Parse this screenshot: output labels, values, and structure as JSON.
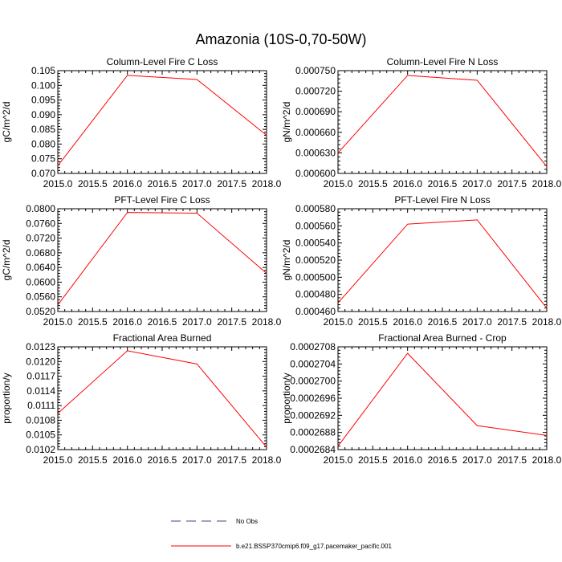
{
  "figure": {
    "title": "Amazonia (10S-0,70-50W)"
  },
  "legend": {
    "items": [
      {
        "label": "No Obs",
        "color": "#4b3c8c",
        "dash": "dashed"
      },
      {
        "label": "b.e21.BSSP370cmip6.f09_g17.pacemaker_pacific.001",
        "color": "#ff0000",
        "dash": "solid"
      }
    ]
  },
  "chart_data": [
    {
      "type": "line",
      "title": "Column-Level Fire C Loss",
      "ylabel": "gC/m^2/d",
      "xlim": [
        2015.0,
        2018.0
      ],
      "ylim": [
        0.07,
        0.105
      ],
      "xticks": [
        "2015.0",
        "2015.5",
        "2016.0",
        "2016.5",
        "2017.0",
        "2017.5",
        "2018.0"
      ],
      "yticks": [
        "0.070",
        "0.075",
        "0.080",
        "0.085",
        "0.090",
        "0.095",
        "0.100",
        "0.105"
      ],
      "x": [
        2015.0,
        2016.0,
        2017.0,
        2018.0
      ],
      "series": [
        {
          "name": "b.e21.BSSP370cmip6.f09_g17.pacemaker_pacific.001",
          "color": "#ff0000",
          "values": [
            0.0726,
            0.1034,
            0.102,
            0.083
          ]
        }
      ]
    },
    {
      "type": "line",
      "title": "Column-Level Fire N Loss",
      "ylabel": "gN/m^2/d",
      "xlim": [
        2015.0,
        2018.0
      ],
      "ylim": [
        0.0006,
        0.00075
      ],
      "xticks": [
        "2015.0",
        "2015.5",
        "2016.0",
        "2016.5",
        "2017.0",
        "2017.5",
        "2018.0"
      ],
      "yticks": [
        "0.000600",
        "0.000630",
        "0.000660",
        "0.000690",
        "0.000720",
        "0.000750"
      ],
      "x": [
        2015.0,
        2016.0,
        2017.0,
        2018.0
      ],
      "series": [
        {
          "name": "b.e21.BSSP370cmip6.f09_g17.pacemaker_pacific.001",
          "color": "#ff0000",
          "values": [
            0.00063,
            0.000743,
            0.000736,
            0.00061
          ]
        }
      ]
    },
    {
      "type": "line",
      "title": "PFT-Level Fire C Loss",
      "ylabel": "gC/m^2/d",
      "xlim": [
        2015.0,
        2018.0
      ],
      "ylim": [
        0.052,
        0.08
      ],
      "xticks": [
        "2015.0",
        "2015.5",
        "2016.0",
        "2016.5",
        "2017.0",
        "2017.5",
        "2018.0"
      ],
      "yticks": [
        "0.0520",
        "0.0560",
        "0.0600",
        "0.0640",
        "0.0680",
        "0.0720",
        "0.0760",
        "0.0800"
      ],
      "x": [
        2015.0,
        2016.0,
        2017.0,
        2018.0
      ],
      "series": [
        {
          "name": "b.e21.BSSP370cmip6.f09_g17.pacemaker_pacific.001",
          "color": "#ff0000",
          "values": [
            0.0538,
            0.079,
            0.0788,
            0.0624
          ]
        }
      ]
    },
    {
      "type": "line",
      "title": "PFT-Level Fire N Loss",
      "ylabel": "gN/m^2/d",
      "xlim": [
        2015.0,
        2018.0
      ],
      "ylim": [
        0.00046,
        0.00058
      ],
      "xticks": [
        "2015.0",
        "2015.5",
        "2016.0",
        "2016.5",
        "2017.0",
        "2017.5",
        "2018.0"
      ],
      "yticks": [
        "0.000460",
        "0.000480",
        "0.000500",
        "0.000520",
        "0.000540",
        "0.000560",
        "0.000580"
      ],
      "x": [
        2015.0,
        2016.0,
        2017.0,
        2018.0
      ],
      "series": [
        {
          "name": "b.e21.BSSP370cmip6.f09_g17.pacemaker_pacific.001",
          "color": "#ff0000",
          "values": [
            0.00047,
            0.000562,
            0.000567,
            0.000464
          ]
        }
      ]
    },
    {
      "type": "line",
      "title": "Fractional Area Burned",
      "ylabel": "proportion/y",
      "xlim": [
        2015.0,
        2018.0
      ],
      "ylim": [
        0.0102,
        0.0123
      ],
      "xticks": [
        "2015.0",
        "2015.5",
        "2016.0",
        "2016.5",
        "2017.0",
        "2017.5",
        "2018.0"
      ],
      "yticks": [
        "0.0102",
        "0.0105",
        "0.0108",
        "0.0111",
        "0.0114",
        "0.0117",
        "0.0120",
        "0.0123"
      ],
      "x": [
        2015.0,
        2016.0,
        2017.0,
        2018.0
      ],
      "series": [
        {
          "name": "b.e21.BSSP370cmip6.f09_g17.pacemaker_pacific.001",
          "color": "#ff0000",
          "values": [
            0.01094,
            0.01222,
            0.01195,
            0.01025
          ]
        }
      ]
    },
    {
      "type": "line",
      "title": "Fractional Area Burned - Crop",
      "ylabel": "proportion/y",
      "xlim": [
        2015.0,
        2018.0
      ],
      "ylim": [
        0.0002684,
        0.0002708
      ],
      "xticks": [
        "2015.0",
        "2015.5",
        "2016.0",
        "2016.5",
        "2017.0",
        "2017.5",
        "2018.0"
      ],
      "yticks": [
        "0.0002684",
        "0.0002688",
        "0.0002692",
        "0.0002696",
        "0.0002700",
        "0.0002704",
        "0.0002708"
      ],
      "x": [
        2015.0,
        2016.0,
        2017.0,
        2018.0
      ],
      "series": [
        {
          "name": "b.e21.BSSP370cmip6.f09_g17.pacemaker_pacific.001",
          "color": "#ff0000",
          "values": [
            0.00026848,
            0.00027065,
            0.00026896,
            0.00026873
          ]
        }
      ]
    }
  ]
}
